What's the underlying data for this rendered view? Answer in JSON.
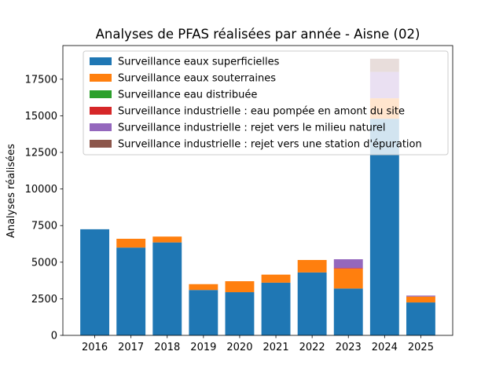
{
  "chart_data": {
    "type": "bar",
    "stacked": true,
    "title": "Analyses de PFAS réalisées par année - Aisne (02)",
    "xlabel": "",
    "ylabel": "Analyses réalisées",
    "categories": [
      "2016",
      "2017",
      "2018",
      "2019",
      "2020",
      "2021",
      "2022",
      "2023",
      "2024",
      "2025"
    ],
    "ylim": [
      0,
      19800
    ],
    "yticks": [
      0,
      2500,
      5000,
      7500,
      10000,
      12500,
      15000,
      17500
    ],
    "ytick_labels": [
      "0",
      "2500",
      "5000",
      "7500",
      "10000",
      "12500",
      "15000",
      "17500"
    ],
    "grid": false,
    "legend_position": "top-right",
    "series": [
      {
        "name": "Surveillance eaux superficielles",
        "color": "#1f77b4",
        "values": [
          7250,
          6000,
          6350,
          3100,
          2950,
          3600,
          4300,
          3200,
          14800,
          2250
        ]
      },
      {
        "name": "Surveillance eaux souterraines",
        "color": "#ff7f0e",
        "values": [
          0,
          600,
          400,
          400,
          750,
          550,
          850,
          1350,
          1400,
          400
        ]
      },
      {
        "name": "Surveillance eau distribuée",
        "color": "#2ca02c",
        "values": [
          0,
          0,
          0,
          0,
          0,
          0,
          0,
          0,
          0,
          0
        ]
      },
      {
        "name": "Surveillance industrielle : eau pompée en amont du site",
        "color": "#d62728",
        "values": [
          0,
          0,
          0,
          0,
          0,
          0,
          0,
          50,
          0,
          0
        ]
      },
      {
        "name": "Surveillance industrielle : rejet vers le milieu naturel",
        "color": "#9467bd",
        "values": [
          0,
          0,
          0,
          0,
          0,
          0,
          0,
          600,
          1800,
          70
        ]
      },
      {
        "name": "Surveillance industrielle : rejet vers une station d'épuration",
        "color": "#8c564b",
        "values": [
          0,
          0,
          0,
          0,
          0,
          0,
          0,
          0,
          900,
          0
        ]
      }
    ]
  }
}
